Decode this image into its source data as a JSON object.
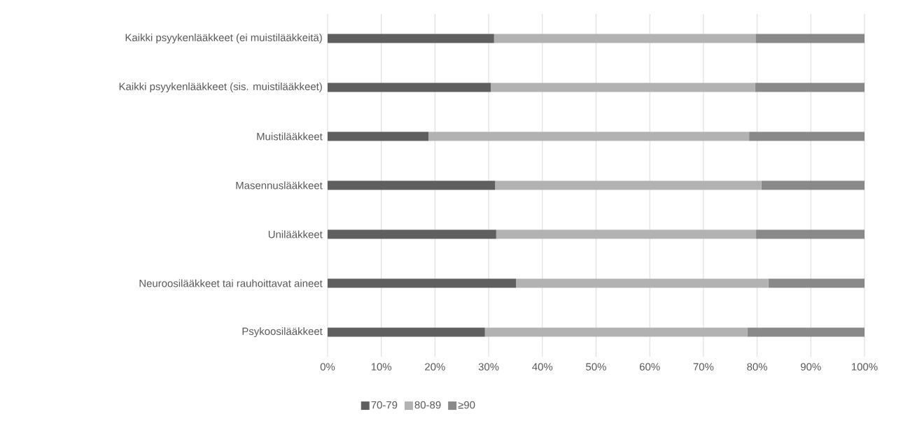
{
  "chart_data": {
    "type": "bar",
    "orientation": "horizontal",
    "stacked": true,
    "categories": [
      "Kaikki psyykenlääkkeet (ei muistilääkkeitä)",
      "Kaikki psyykenlääkkeet (sis. muistilääkkeet)",
      "Muistilääkkeet",
      "Masennuslääkkeet",
      "Unilääkkeet",
      "Neuroosilääkkeet tai rauhoittavat aineet",
      "Psykoosilääkkeet"
    ],
    "series": [
      {
        "name": "70-79",
        "color": "#5f5f5f",
        "values": [
          31.0,
          30.4,
          18.8,
          31.2,
          31.4,
          35.1,
          29.3
        ]
      },
      {
        "name": "80-89",
        "color": "#b2b2b2",
        "values": [
          48.7,
          49.2,
          59.7,
          49.6,
          48.4,
          47.0,
          48.9
        ]
      },
      {
        "name": "≥90",
        "color": "#898989",
        "values": [
          20.3,
          20.4,
          21.5,
          19.2,
          20.2,
          17.9,
          21.8
        ]
      }
    ],
    "xlim": [
      0,
      100
    ],
    "xticks": [
      {
        "value": 0,
        "label": "0%"
      },
      {
        "value": 10,
        "label": "10%"
      },
      {
        "value": 20,
        "label": "20%"
      },
      {
        "value": 30,
        "label": "30%"
      },
      {
        "value": 40,
        "label": "40%"
      },
      {
        "value": 50,
        "label": "50%"
      },
      {
        "value": 60,
        "label": "60%"
      },
      {
        "value": 70,
        "label": "70%"
      },
      {
        "value": 80,
        "label": "80%"
      },
      {
        "value": 90,
        "label": "90%"
      },
      {
        "value": 100,
        "label": "100%"
      }
    ],
    "grid": "x",
    "legend": "bottom"
  }
}
